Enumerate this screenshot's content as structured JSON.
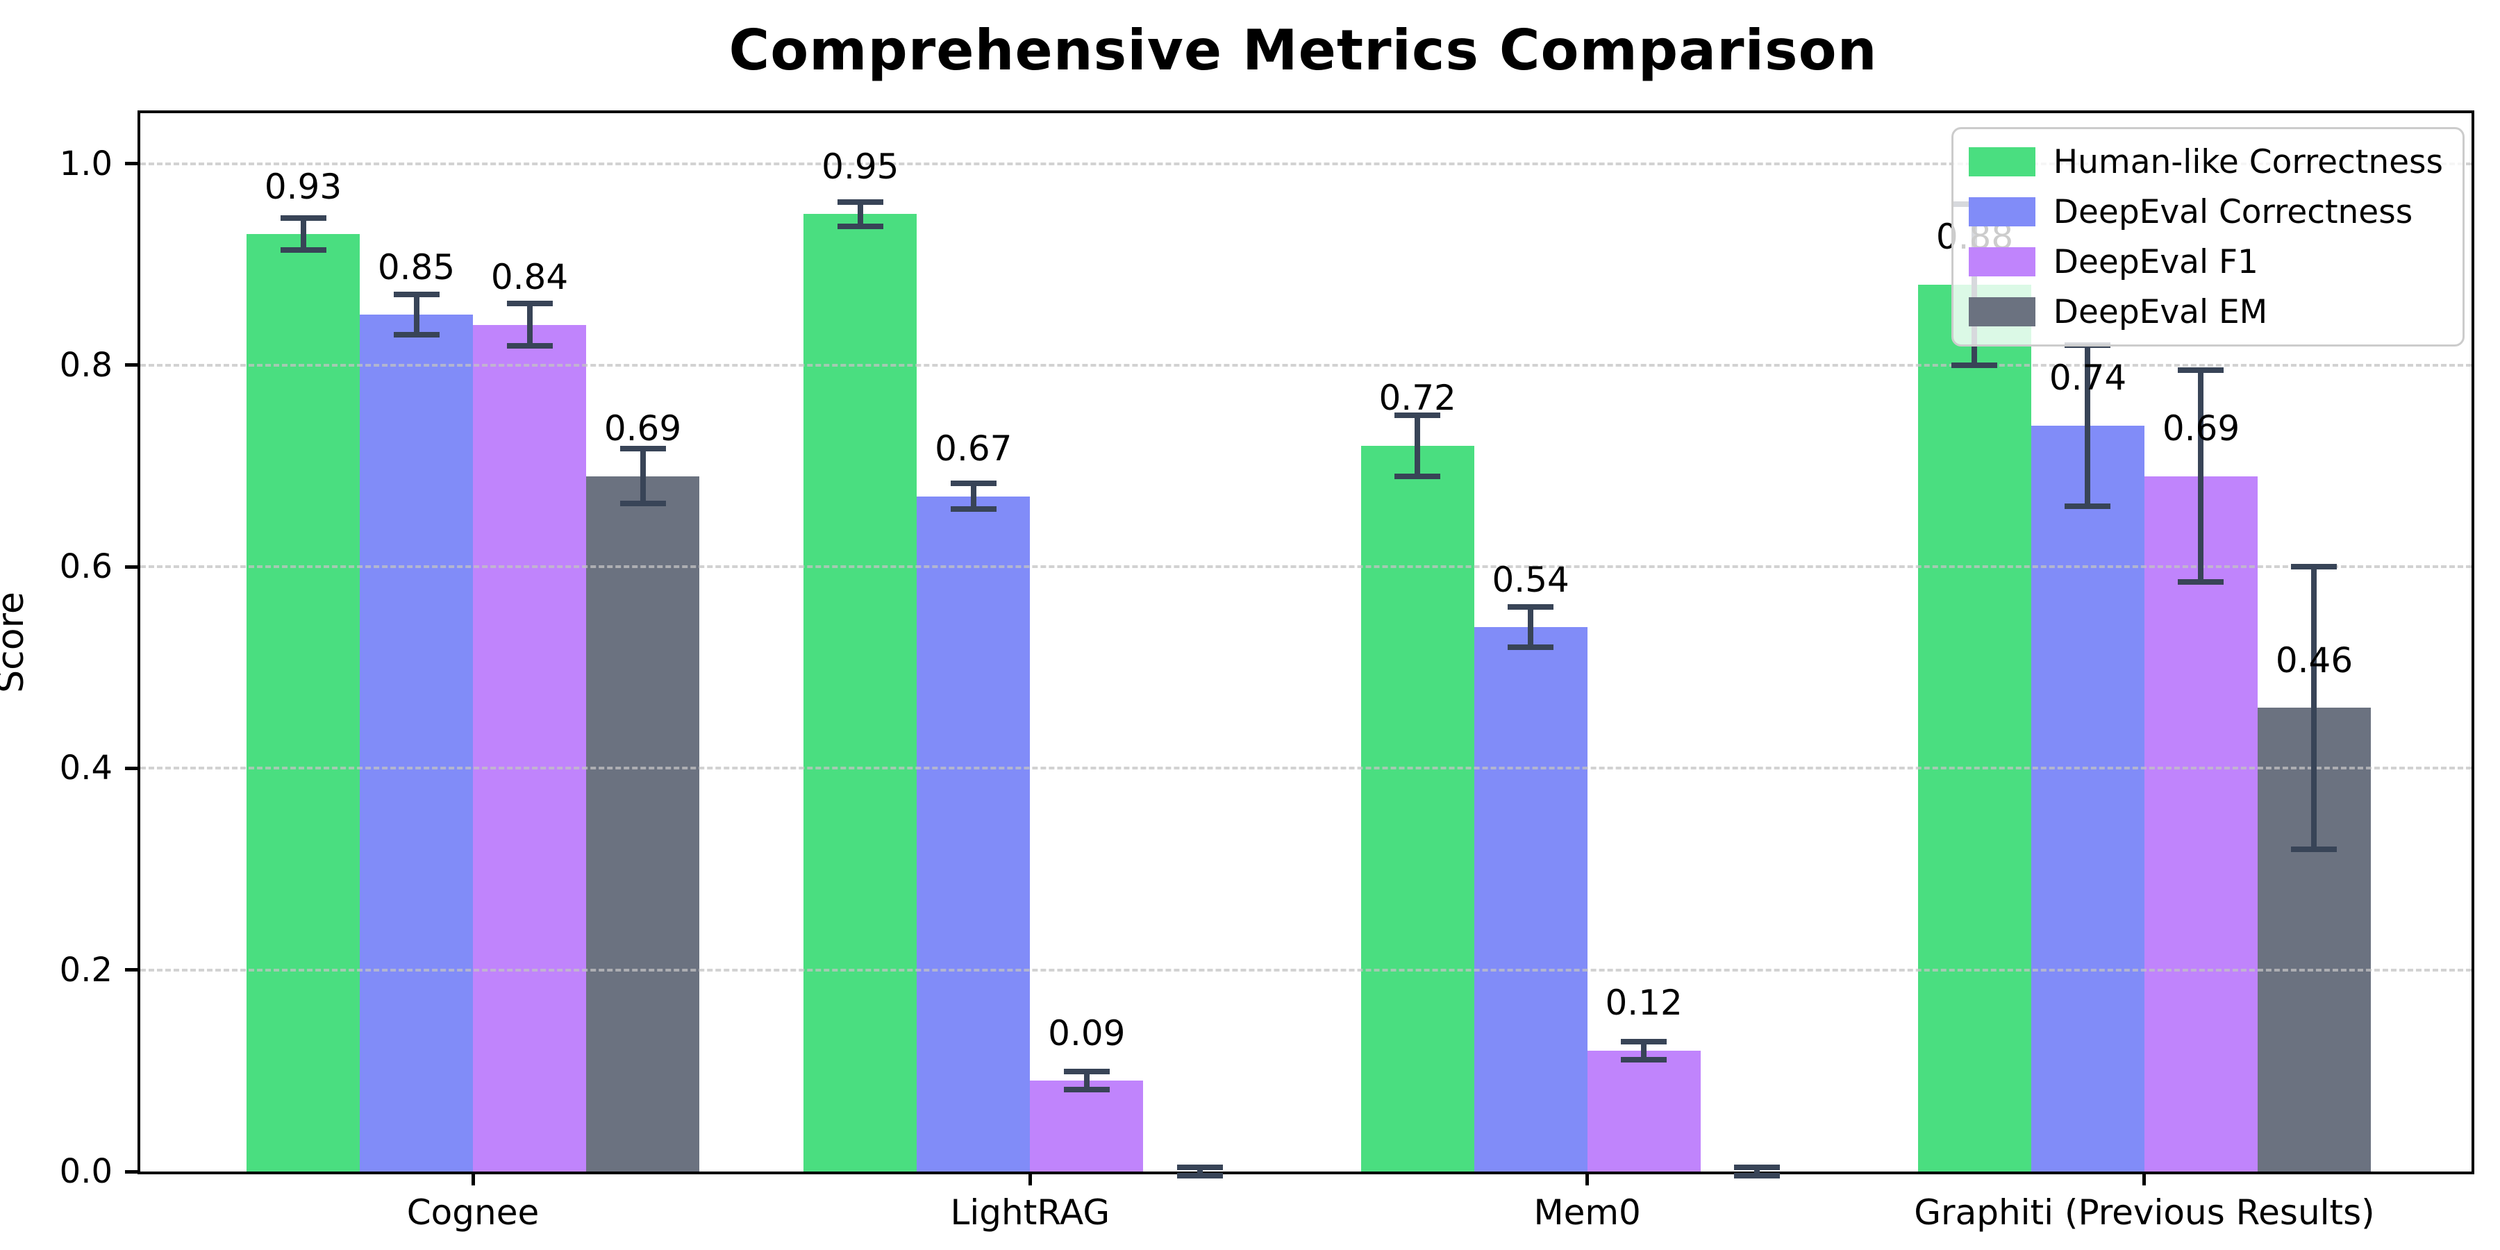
{
  "chart_data": {
    "type": "bar",
    "title": "Comprehensive Metrics Comparison",
    "ylabel": "Score",
    "xlabel": "",
    "ylim": [
      0,
      1.05
    ],
    "yticks": [
      0.0,
      0.2,
      0.4,
      0.6,
      0.8,
      1.0
    ],
    "grid": "horizontal dashed gridlines drawn above bars",
    "legend_position": "upper right",
    "background_color": "#ffffff",
    "error_bar_color": "#384457",
    "axis_color": "#000000",
    "categories": [
      "Cognee",
      "LightRAG",
      "Mem0",
      "Graphiti (Previous Results)"
    ],
    "series": [
      {
        "name": "Human-like Correctness",
        "color": "#4ade80",
        "values": [
          0.93,
          0.95,
          0.72,
          0.88
        ],
        "errors": [
          0.016,
          0.012,
          0.03,
          0.08
        ],
        "labels": [
          "0.93",
          "0.95",
          "0.72",
          "0.88"
        ]
      },
      {
        "name": "DeepEval Correctness",
        "color": "#818cf8",
        "values": [
          0.85,
          0.67,
          0.54,
          0.74
        ],
        "errors": [
          0.02,
          0.013,
          0.02,
          0.08
        ],
        "labels": [
          "0.85",
          "0.67",
          "0.54",
          "0.74"
        ]
      },
      {
        "name": "DeepEval F1",
        "color": "#c084fc",
        "values": [
          0.84,
          0.09,
          0.12,
          0.69
        ],
        "errors": [
          0.021,
          0.009,
          0.009,
          0.105
        ],
        "labels": [
          "0.84",
          "0.09",
          "0.12",
          "0.69"
        ]
      },
      {
        "name": "DeepEval EM",
        "color": "#6b7280",
        "values": [
          0.69,
          0.0,
          0.0,
          0.46
        ],
        "errors": [
          0.027,
          0.004,
          0.004,
          0.14
        ],
        "labels": [
          "0.69",
          "",
          "",
          "0.46"
        ]
      }
    ]
  }
}
